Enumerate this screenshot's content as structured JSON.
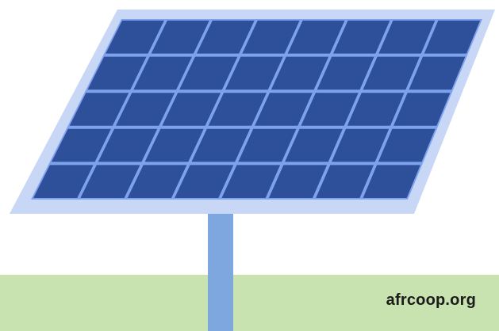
{
  "footer": {
    "site_label": "afrcoop.org"
  },
  "colors": {
    "background": "#ffffff",
    "ground": "#c8e3b0",
    "pole": "#7ea6df",
    "panel_frame": "#c9d7f6",
    "panel_grid_lines": "#7ea3ec",
    "panel_cells": "#2e4f9a",
    "label_text": "#1b1b1b"
  },
  "icons": {
    "panel": "solar-panel-icon"
  }
}
